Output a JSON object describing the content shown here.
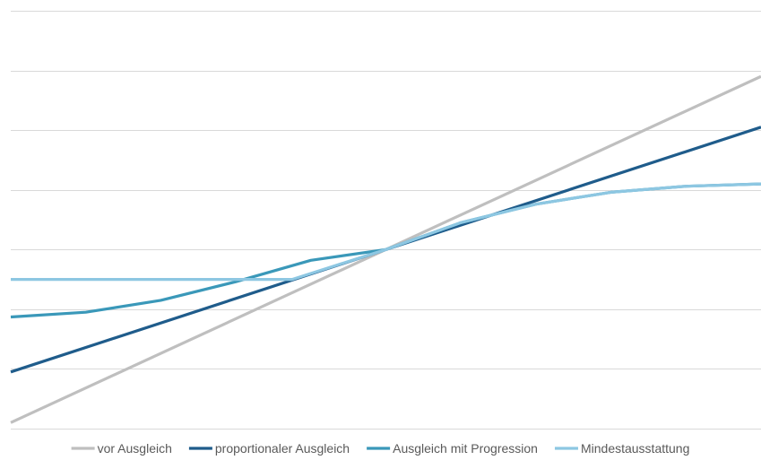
{
  "chart_data": {
    "type": "line",
    "title": "",
    "xlabel": "",
    "ylabel": "",
    "xlim": [
      0,
      100
    ],
    "ylim": [
      0,
      7
    ],
    "grid": true,
    "legend_position": "bottom",
    "axis_labels_shown": false,
    "series": [
      {
        "name": "vor Ausgleich",
        "color": "#bfbfbf",
        "x": [
          0,
          100
        ],
        "y": [
          0.1,
          5.9
        ]
      },
      {
        "name": "proportionaler Ausgleich",
        "color": "#1f5c8b",
        "x": [
          0,
          100
        ],
        "y": [
          0.95,
          5.05
        ]
      },
      {
        "name": "Ausgleich mit Progression",
        "color": "#3a98b9",
        "x": [
          0,
          10,
          20,
          30,
          40,
          50,
          60,
          70,
          80,
          90,
          100
        ],
        "y": [
          1.87,
          1.95,
          2.15,
          2.46,
          2.82,
          3.0,
          3.45,
          3.76,
          3.96,
          4.06,
          4.1
        ]
      },
      {
        "name": "Mindestausstattung",
        "color": "#8dc7e2",
        "x": [
          0,
          37.5,
          50,
          60,
          70,
          80,
          90,
          100
        ],
        "y": [
          2.5,
          2.5,
          3.0,
          3.45,
          3.76,
          3.96,
          4.06,
          4.1
        ]
      }
    ]
  }
}
